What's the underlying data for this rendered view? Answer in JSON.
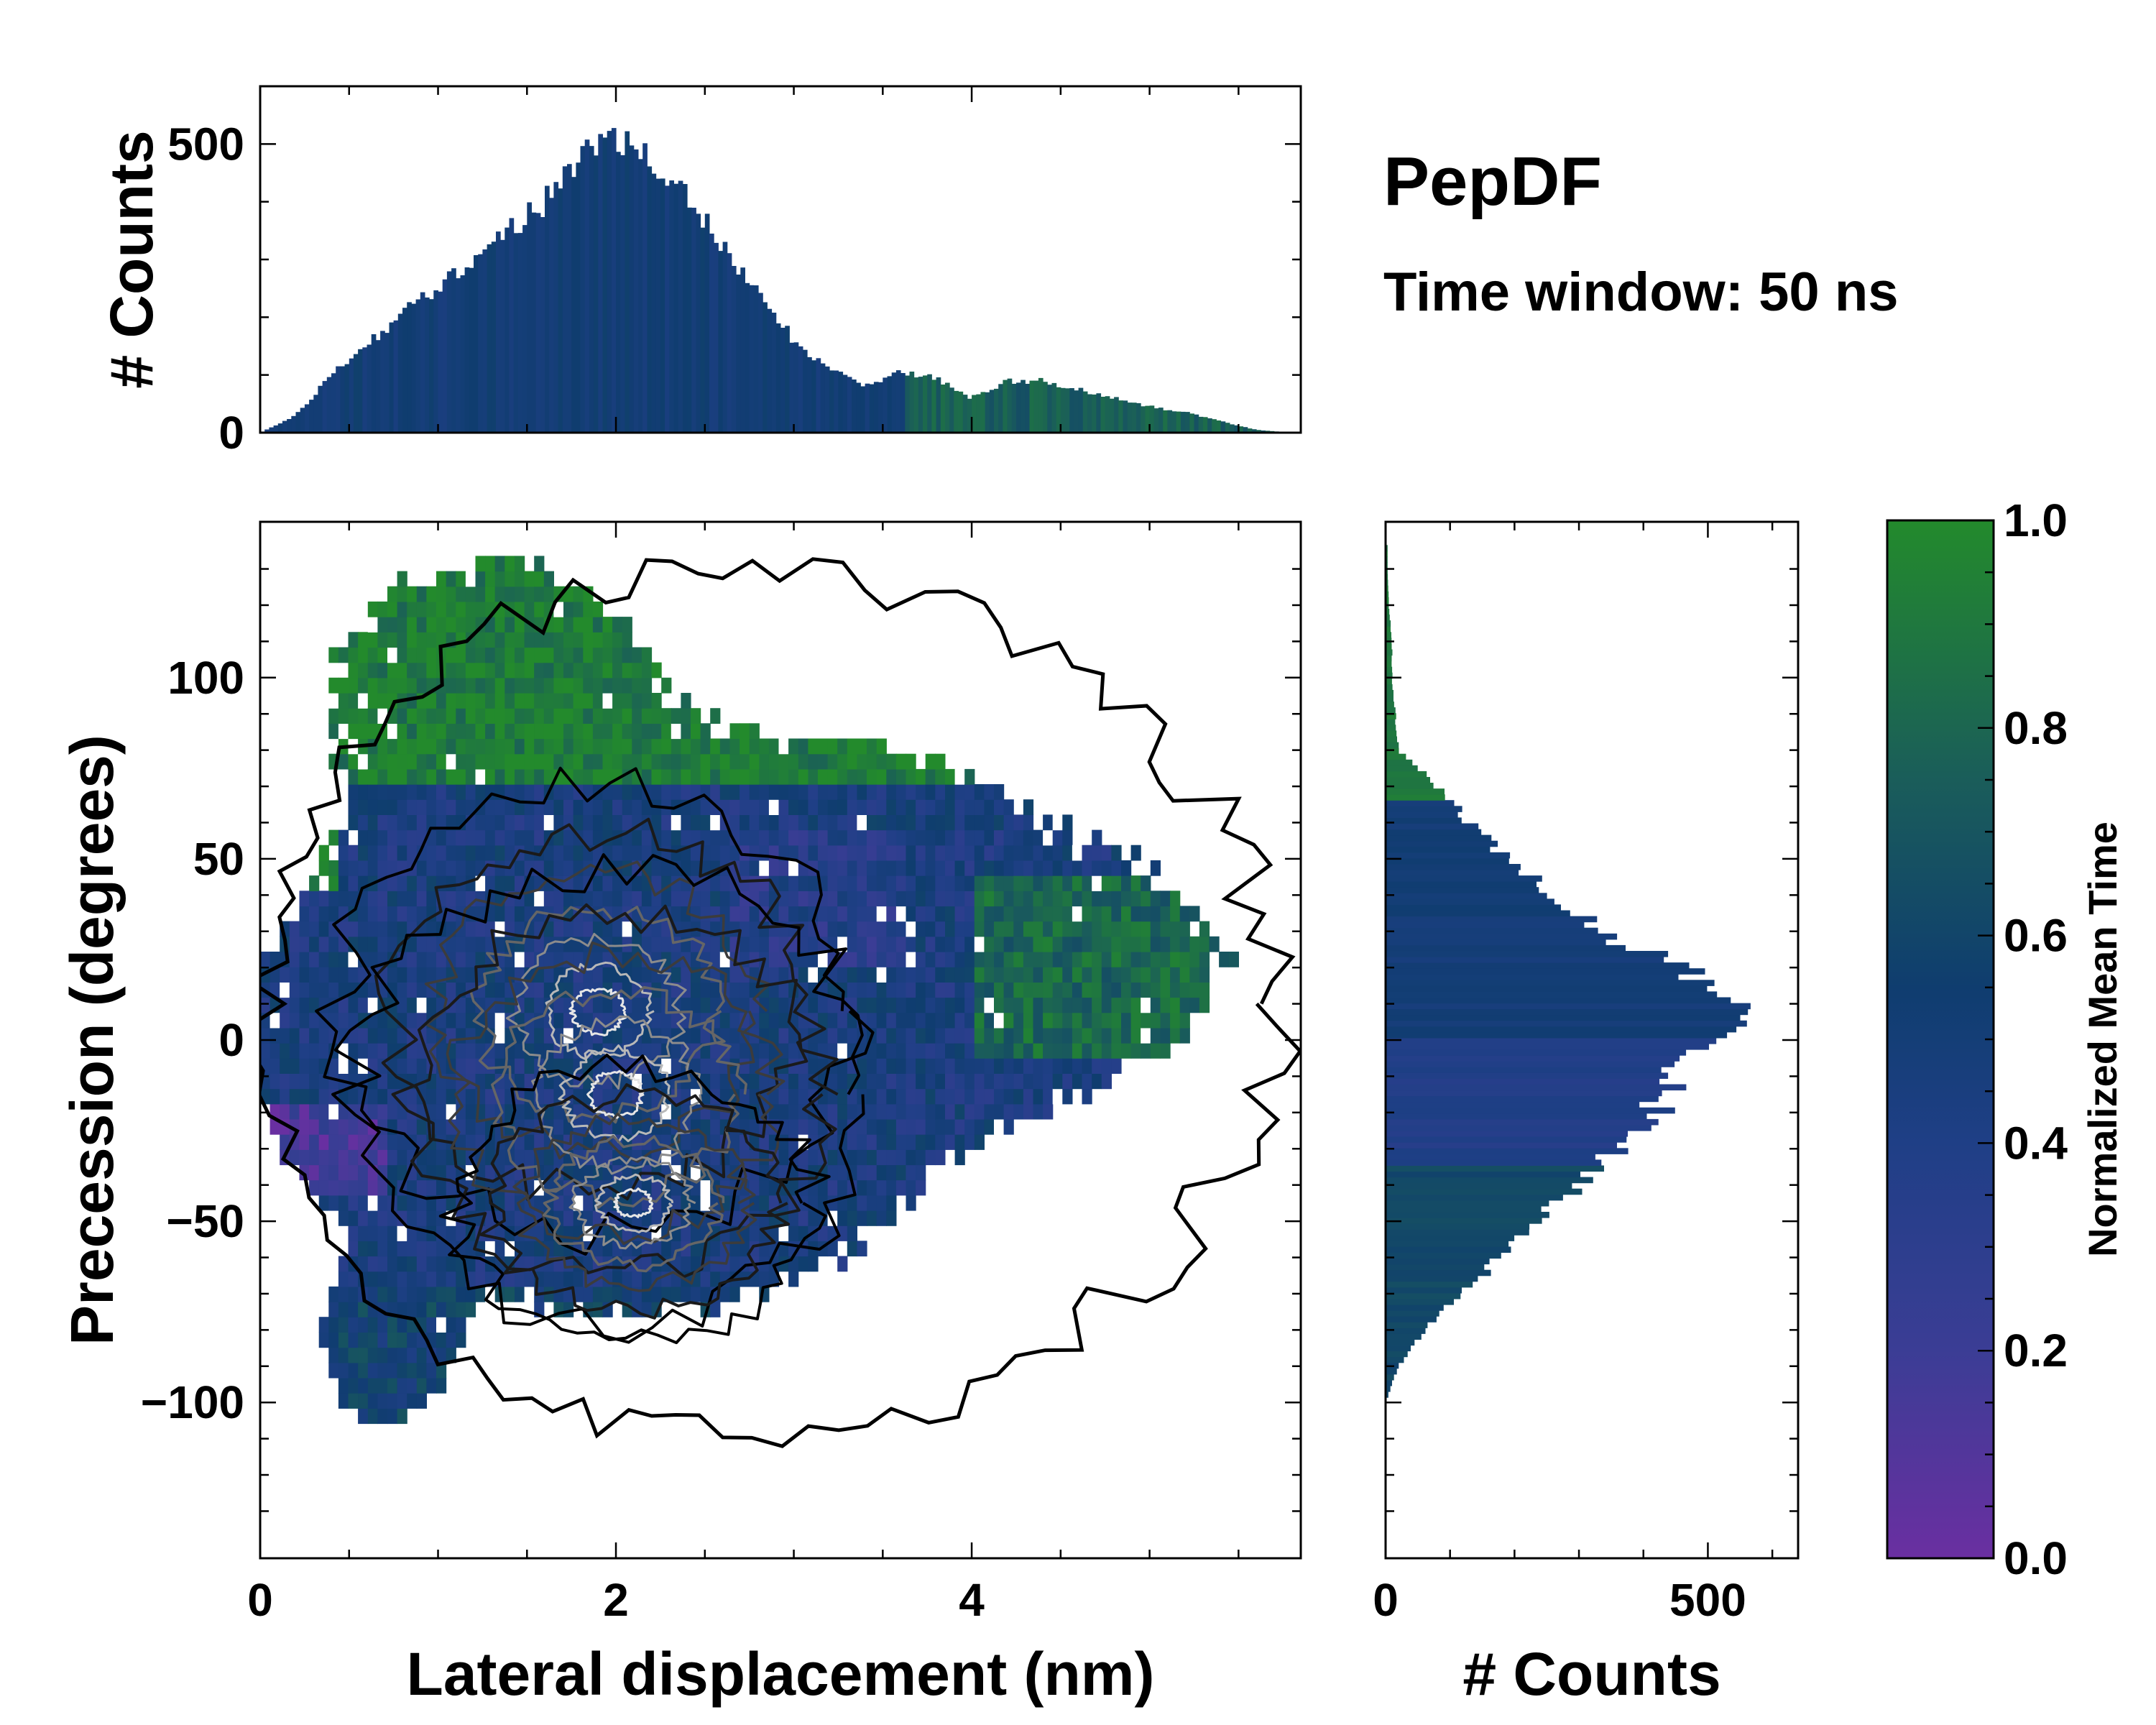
{
  "title": "PepDF",
  "subtitle": "Time window: 50 ns",
  "chart_data": [
    {
      "type": "heatmap",
      "name": "joint-2d-histogram",
      "xlabel": "Lateral displacement (nm)",
      "ylabel": "Precession (degrees)",
      "xlim": [
        0,
        5.85
      ],
      "ylim": [
        -143,
        143
      ],
      "xticks": [
        0,
        2,
        4
      ],
      "xtick_labels": [
        "0",
        "2",
        "4"
      ],
      "yticks": [
        -100,
        -50,
        0,
        50,
        100
      ],
      "ytick_labels": [
        "−100",
        "−50",
        "0",
        "50",
        "100"
      ],
      "color_encoding": "Normalized Mean Time",
      "contours": "density contours, black (low) to white (high)",
      "density_peaks": [
        {
          "x": 1.9,
          "y": 8
        },
        {
          "x": 2.0,
          "y": -15
        },
        {
          "x": 2.1,
          "y": -45
        }
      ],
      "color_regions": [
        {
          "x_range": [
            0,
            2.4
          ],
          "y_range": [
            70,
            138
          ],
          "value": 0.95
        },
        {
          "x_range": [
            2.0,
            4.5
          ],
          "y_range": [
            -20,
            30
          ],
          "value": 0.4
        },
        {
          "x_range": [
            4.2,
            5.7
          ],
          "y_range": [
            0,
            40
          ],
          "value": 0.85
        },
        {
          "x_range": [
            0,
            0.6
          ],
          "y_range": [
            -40,
            -25
          ],
          "value": 0.15
        }
      ]
    },
    {
      "type": "bar",
      "name": "top-marginal-histogram",
      "ylabel": "# Counts",
      "xlim": [
        0,
        5.85
      ],
      "ylim": [
        0,
        600
      ],
      "yticks": [
        0,
        500
      ],
      "ytick_labels": [
        "0",
        "500"
      ],
      "x": [
        0.0,
        0.2,
        0.4,
        0.6,
        0.8,
        1.0,
        1.2,
        1.4,
        1.6,
        1.8,
        1.9,
        2.0,
        2.2,
        2.4,
        2.6,
        2.8,
        3.0,
        3.2,
        3.4,
        3.6,
        3.8,
        4.0,
        4.2,
        4.4,
        4.6,
        4.8,
        5.0,
        5.2,
        5.4,
        5.6,
        5.8
      ],
      "values": [
        0,
        30,
        100,
        150,
        210,
        250,
        300,
        350,
        400,
        470,
        510,
        500,
        480,
        410,
        320,
        240,
        160,
        110,
        80,
        105,
        95,
        60,
        90,
        90,
        75,
        60,
        45,
        35,
        20,
        5,
        0
      ]
    },
    {
      "type": "bar",
      "name": "right-marginal-histogram",
      "orientation": "horizontal",
      "xlabel": "# Counts",
      "xlim": [
        0,
        640
      ],
      "xticks": [
        0,
        500
      ],
      "xtick_labels": [
        "0",
        "500"
      ],
      "y": [
        -100,
        -90,
        -80,
        -70,
        -60,
        -50,
        -40,
        -30,
        -20,
        -10,
        0,
        10,
        20,
        30,
        40,
        50,
        60,
        70,
        80,
        90,
        100,
        110,
        120,
        130
      ],
      "values": [
        0,
        20,
        60,
        120,
        180,
        240,
        300,
        360,
        420,
        440,
        500,
        560,
        460,
        330,
        260,
        190,
        130,
        80,
        20,
        15,
        10,
        10,
        5,
        3
      ]
    },
    {
      "type": "colorbar",
      "name": "colorbar",
      "label": "Normalized Mean Time",
      "range": [
        0.0,
        1.0
      ],
      "ticks": [
        0.0,
        0.2,
        0.4,
        0.6,
        0.8,
        1.0
      ],
      "tick_labels": [
        "0.0",
        "0.2",
        "0.4",
        "0.6",
        "0.8",
        "1.0"
      ],
      "colors": [
        "#6a2fa1",
        "#3b3d95",
        "#1f3f86",
        "#0f3d6f",
        "#1a5d5a",
        "#238a2c"
      ]
    }
  ]
}
